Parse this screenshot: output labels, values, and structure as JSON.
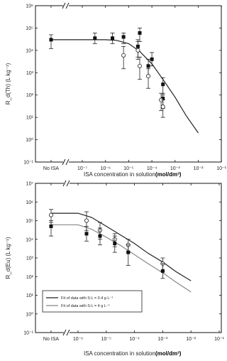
{
  "chart_data": [
    {
      "type": "scatter",
      "panel": "top",
      "ylabel": "R_d(Th) (L kg⁻¹)",
      "xlabel": "ISA concentration in solution",
      "xlabel_unit": "(mol/dm³)",
      "x_scale": "log",
      "y_scale": "log",
      "xlim": [
        1e-08,
        0.1
      ],
      "ylim": [
        0.1,
        1000000
      ],
      "x_tick_labels": [
        "No ISA",
        "10⁻⁷",
        "10⁻⁶",
        "10⁻⁵",
        "10⁻⁴",
        "10⁻³",
        "10⁻²",
        "10⁻¹"
      ],
      "y_tick_labels": [
        "10⁻¹",
        "10⁰",
        "10¹",
        "10²",
        "10³",
        "10⁴",
        "10⁵",
        "10⁶"
      ],
      "axis_break": true,
      "series": [
        {
          "marker": "filled-square",
          "points": [
            {
              "x": "No ISA",
              "y": 30000,
              "err_lo": 12000,
              "err_hi": 50000
            },
            {
              "x": 3.5e-07,
              "y": 35000,
              "err_lo": 20000,
              "err_hi": 60000
            },
            {
              "x": 2e-06,
              "y": 35000,
              "err_lo": 20000,
              "err_hi": 60000
            },
            {
              "x": 6e-06,
              "y": 40000,
              "err_lo": 20000,
              "err_hi": 60000
            },
            {
              "x": 2.5e-05,
              "y": 15000,
              "err_lo": 5000,
              "err_hi": 30000
            },
            {
              "x": 3e-05,
              "y": 60000,
              "err_lo": 25000,
              "err_hi": 100000
            },
            {
              "x": 7e-05,
              "y": 2000,
              "err_lo": 700,
              "err_hi": 4000
            },
            {
              "x": 0.0001,
              "y": 4000,
              "err_lo": 2000,
              "err_hi": 8000
            },
            {
              "x": 0.0003,
              "y": 300,
              "err_lo": 100,
              "err_hi": 600
            },
            {
              "x": 0.0003,
              "y": 70,
              "err_lo": 25,
              "err_hi": 120
            }
          ]
        },
        {
          "marker": "open-circle",
          "points": [
            {
              "x": 6e-06,
              "y": 6000,
              "err_lo": 1500,
              "err_hi": 15000
            },
            {
              "x": 2.5e-05,
              "y": 10000,
              "err_lo": 4000,
              "err_hi": 25000
            },
            {
              "x": 3e-05,
              "y": 2000,
              "err_lo": 500,
              "err_hi": 5000
            },
            {
              "x": 7e-05,
              "y": 700,
              "err_lo": 200,
              "err_hi": 1500
            },
            {
              "x": 0.00025,
              "y": 60,
              "err_lo": 20,
              "err_hi": 120
            },
            {
              "x": 0.0003,
              "y": 30,
              "err_lo": 10,
              "err_hi": 60
            }
          ]
        }
      ],
      "fits": [
        {
          "style": "solid",
          "points": [
            [
              "No ISA",
              30000
            ],
            [
              1e-06,
              30000
            ],
            [
              3e-06,
              28000
            ],
            [
              1e-05,
              20000
            ],
            [
              3e-05,
              9000
            ],
            [
              0.0001,
              2500
            ],
            [
              0.0003,
              500
            ],
            [
              0.001,
              80
            ],
            [
              0.003,
              12
            ],
            [
              0.01,
              2
            ]
          ]
        }
      ]
    },
    {
      "type": "scatter",
      "panel": "bottom",
      "ylabel": "R_d(Eu) (L kg⁻¹)",
      "xlabel": "ISA concentration in solution",
      "xlabel_unit": "(mol/dm³)",
      "x_scale": "log",
      "y_scale": "log",
      "xlim": [
        1e-08,
        0.1
      ],
      "ylim": [
        0.1,
        10000000
      ],
      "x_tick_labels": [
        "No ISA",
        "10⁻⁶",
        "10⁻⁵",
        "10⁻⁴",
        "10⁻³",
        "10⁻²",
        "10⁻¹"
      ],
      "y_tick_labels": [
        "10⁻¹",
        "10⁰",
        "10¹",
        "10²",
        "10³",
        "10⁴",
        "10⁵",
        "10⁶",
        "10⁷"
      ],
      "axis_break": true,
      "legend": {
        "position": "lower-left",
        "entries": [
          "Fit of data with S:L = 0.4 g L⁻¹",
          "Fit of data with S:L = 4 g L⁻¹"
        ]
      },
      "series": [
        {
          "marker": "open-circle",
          "points": [
            {
              "x": "No ISA",
              "y": 200000,
              "err_lo": 80000,
              "err_hi": 400000
            },
            {
              "x": 2e-06,
              "y": 100000,
              "err_lo": 30000,
              "err_hi": 300000
            },
            {
              "x": 6e-06,
              "y": 30000,
              "err_lo": 10000,
              "err_hi": 80000
            },
            {
              "x": 2e-05,
              "y": 10000,
              "err_lo": 4000,
              "err_hi": 20000
            },
            {
              "x": 6e-05,
              "y": 5000,
              "err_lo": 2000,
              "err_hi": 10000
            },
            {
              "x": 0.001,
              "y": 500,
              "err_lo": 200,
              "err_hi": 1000
            }
          ]
        },
        {
          "marker": "filled-square",
          "points": [
            {
              "x": "No ISA",
              "y": 50000,
              "err_lo": 15000,
              "err_hi": 100000
            },
            {
              "x": 2e-06,
              "y": 20000,
              "err_lo": 8000,
              "err_hi": 50000
            },
            {
              "x": 6e-06,
              "y": 15000,
              "err_lo": 5000,
              "err_hi": 40000
            },
            {
              "x": 2e-05,
              "y": 6000,
              "err_lo": 2000,
              "err_hi": 15000
            },
            {
              "x": 6e-05,
              "y": 2000,
              "err_lo": 400,
              "err_hi": 5000
            },
            {
              "x": 0.001,
              "y": 200,
              "err_lo": 80,
              "err_hi": 500
            }
          ]
        }
      ],
      "fits": [
        {
          "name": "Fit of data with S:L = 0.4 g L⁻¹",
          "style": "dark",
          "points": [
            [
              "No ISA",
              250000
            ],
            [
              1e-06,
              250000
            ],
            [
              3e-06,
              150000
            ],
            [
              1e-05,
              50000
            ],
            [
              3e-05,
              18000
            ],
            [
              0.0001,
              6000
            ],
            [
              0.0003,
              1800
            ],
            [
              0.001,
              600
            ],
            [
              0.003,
              180
            ],
            [
              0.01,
              60
            ]
          ]
        },
        {
          "name": "Fit of data with S:L = 4 g L⁻¹",
          "style": "grey",
          "points": [
            [
              "No ISA",
              60000
            ],
            [
              1e-06,
              60000
            ],
            [
              3e-06,
              35000
            ],
            [
              1e-05,
              13000
            ],
            [
              3e-05,
              5000
            ],
            [
              0.0001,
              1500
            ],
            [
              0.0003,
              500
            ],
            [
              0.001,
              160
            ],
            [
              0.003,
              50
            ],
            [
              0.01,
              15
            ]
          ]
        }
      ]
    }
  ]
}
